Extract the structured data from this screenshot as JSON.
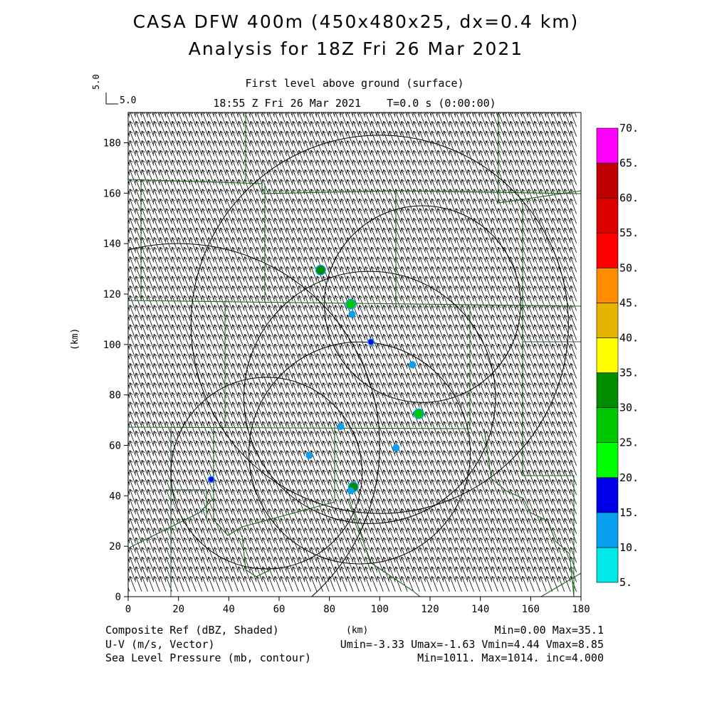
{
  "header": {
    "title_line1": "CASA DFW 400m (450x480x25, dx=0.4 km)",
    "title_line2": "Analysis for 18Z Fri 26 Mar 2021",
    "level_label": "First level above ground (surface)",
    "time_label": "18:55 Z Fri 26 Mar 2021    T=0.0 s (0:00:00)",
    "vector_scale_axis": "5.0",
    "vector_scale_label": "5.0"
  },
  "footer": {
    "field1": "Composite Ref (dBZ, Shaded)",
    "field2": "U-V (m/s, Vector)",
    "field3": "Sea Level Pressure (mb, contour)",
    "stats1": "Min=0.00 Max=35.1",
    "stats2": "Umin=-3.33 Umax=-1.63 Vmin=4.44 Vmax=8.85",
    "stats3": "Min=1011. Max=1014. inc=4.000"
  },
  "chart_data": {
    "type": "heatmap",
    "xlabel": "(km)",
    "ylabel": "(km)",
    "xlim": [
      0,
      180
    ],
    "ylim": [
      0,
      192
    ],
    "x_ticks": [
      0,
      20,
      40,
      60,
      80,
      100,
      120,
      140,
      160,
      180
    ],
    "y_ticks": [
      0,
      20,
      40,
      60,
      80,
      100,
      120,
      140,
      160,
      180
    ],
    "colorbar": {
      "levels": [
        "5.",
        "10.",
        "15.",
        "20.",
        "25.",
        "30.",
        "35.",
        "40.",
        "45.",
        "50.",
        "55.",
        "60.",
        "65.",
        "70."
      ],
      "colors": [
        "#00e8e8",
        "#0aa0f0",
        "#0000e8",
        "#00ff00",
        "#00c800",
        "#008c00",
        "#ffff00",
        "#e6b400",
        "#ff8c00",
        "#ff0000",
        "#dc0000",
        "#be0000",
        "#ff00ff"
      ]
    },
    "wind_vector": {
      "u": -2.5,
      "v": 6.5,
      "grid_spacing_km": 2.4
    },
    "radar_range_rings": [
      {
        "x_km": 55,
        "y_km": 49,
        "r_km": 38
      },
      {
        "x_km": 92,
        "y_km": 57,
        "r_km": 44
      },
      {
        "x_km": 96,
        "y_km": 79,
        "r_km": 50
      },
      {
        "x_km": 117,
        "y_km": 116,
        "r_km": 39
      },
      {
        "x_km": 100,
        "y_km": 108,
        "r_km": 75
      },
      {
        "x_km": 20,
        "y_km": 60,
        "r_km": 80
      }
    ],
    "reflectivity_echoes": [
      {
        "x_km": 76.5,
        "y_km": 129.5,
        "dbz": 33
      },
      {
        "x_km": 88.5,
        "y_km": 116,
        "dbz": 28
      },
      {
        "x_km": 89,
        "y_km": 112,
        "dbz": 12
      },
      {
        "x_km": 96.5,
        "y_km": 101,
        "dbz": 17
      },
      {
        "x_km": 113,
        "y_km": 92,
        "dbz": 12
      },
      {
        "x_km": 115.5,
        "y_km": 72.5,
        "dbz": 28
      },
      {
        "x_km": 84.5,
        "y_km": 67.5,
        "dbz": 10
      },
      {
        "x_km": 106.5,
        "y_km": 59,
        "dbz": 12
      },
      {
        "x_km": 72,
        "y_km": 56,
        "dbz": 12
      },
      {
        "x_km": 33,
        "y_km": 46.5,
        "dbz": 18
      },
      {
        "x_km": 89.5,
        "y_km": 43.5,
        "dbz": 30
      },
      {
        "x_km": 88.5,
        "y_km": 42,
        "dbz": 12
      }
    ]
  }
}
